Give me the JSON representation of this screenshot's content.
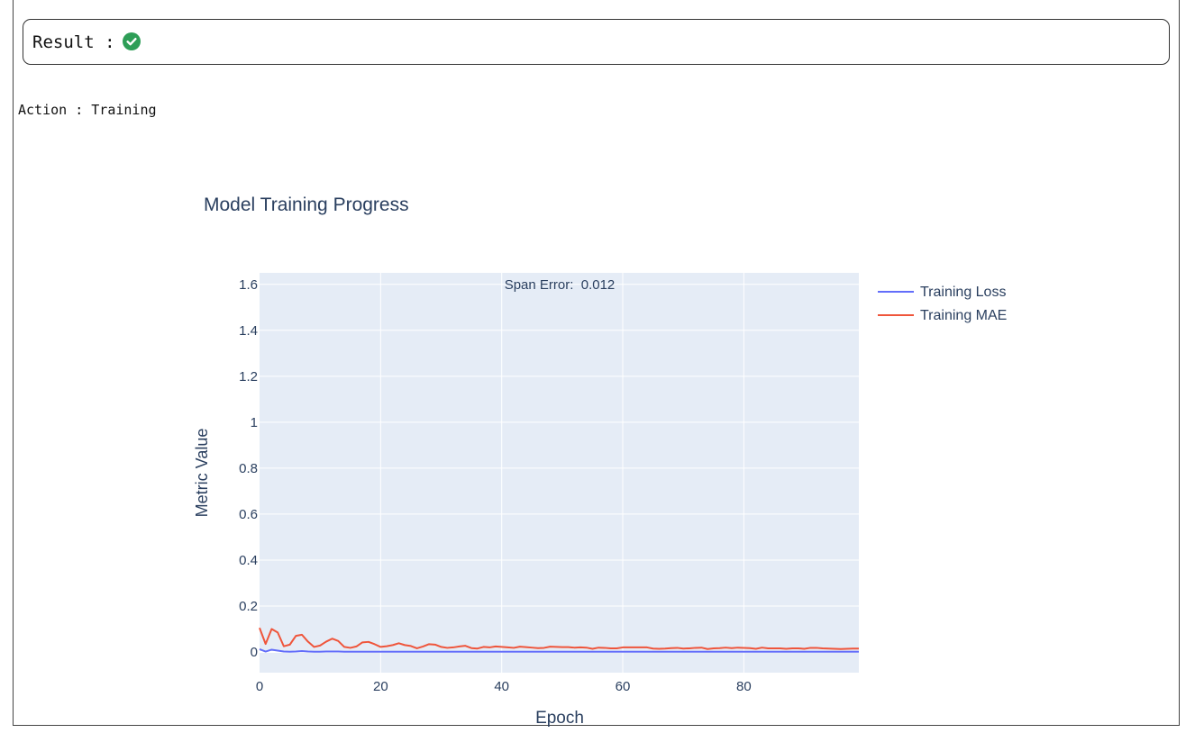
{
  "result": {
    "label": "Result :",
    "status_icon": "check-circle-icon",
    "status_color": "#2e9e57"
  },
  "action": {
    "label": "Action",
    "separator": ":",
    "value": "Training"
  },
  "chart_data": {
    "type": "line",
    "title": "Model Training Progress",
    "xlabel": "Epoch",
    "ylabel": "Metric Value",
    "xlim": [
      0,
      99
    ],
    "ylim": [
      -0.09,
      1.65
    ],
    "x_ticks": [
      0,
      20,
      40,
      60,
      80
    ],
    "y_ticks": [
      0,
      0.2,
      0.4,
      0.6,
      0.8,
      1,
      1.2,
      1.4,
      1.6
    ],
    "y_tick_labels": [
      "0",
      "0.2",
      "0.4",
      "0.6",
      "0.8",
      "1",
      "1.2",
      "1.4",
      "1.6"
    ],
    "grid": true,
    "legend_position": "top-right-outside",
    "annotation": "Span Error:  0.012",
    "colors": {
      "plot_background": "#e5ecf6",
      "text": "#2a3f5f"
    },
    "series": [
      {
        "name": "Training Loss",
        "color": "#636efa",
        "x": [
          0,
          1,
          2,
          3,
          4,
          5,
          6,
          7,
          8,
          9,
          10,
          11,
          12,
          13,
          14,
          15,
          16,
          17,
          18,
          19,
          20,
          21,
          22,
          23,
          24,
          25,
          26,
          27,
          28,
          29,
          30,
          31,
          32,
          33,
          34,
          35,
          36,
          37,
          38,
          39,
          40,
          41,
          42,
          43,
          44,
          45,
          46,
          47,
          48,
          49,
          50,
          51,
          52,
          53,
          54,
          55,
          56,
          57,
          58,
          59,
          60,
          61,
          62,
          63,
          64,
          65,
          66,
          67,
          68,
          69,
          70,
          71,
          72,
          73,
          74,
          75,
          76,
          77,
          78,
          79,
          80,
          81,
          82,
          83,
          84,
          85,
          86,
          87,
          88,
          89,
          90,
          91,
          92,
          93,
          94,
          95,
          96,
          97,
          98,
          99
        ],
        "values": [
          0.012,
          0.002,
          0.01,
          0.006,
          0.002,
          0.001,
          0.002,
          0.004,
          0.002,
          0.001,
          0.001,
          0.002,
          0.002,
          0.002,
          0.001,
          0.001,
          0.001,
          0.001,
          0.001,
          0.001,
          0.001,
          0.001,
          0.001,
          0.001,
          0.001,
          0.001,
          0.001,
          0.001,
          0.001,
          0.001,
          0.001,
          0.001,
          0.001,
          0.001,
          0.001,
          0.001,
          0.001,
          0.001,
          0.001,
          0.001,
          0.001,
          0.001,
          0.001,
          0.001,
          0.001,
          0.001,
          0.001,
          0.001,
          0.001,
          0.001,
          0.001,
          0.001,
          0.001,
          0.001,
          0.001,
          0.001,
          0.001,
          0.001,
          0.001,
          0.001,
          0.001,
          0.001,
          0.001,
          0.001,
          0.001,
          0.001,
          0.001,
          0.001,
          0.001,
          0.001,
          0.001,
          0.001,
          0.001,
          0.001,
          0.001,
          0.001,
          0.001,
          0.001,
          0.001,
          0.001,
          0.001,
          0.001,
          0.001,
          0.001,
          0.001,
          0.001,
          0.001,
          0.001,
          0.001,
          0.001,
          0.001,
          0.001,
          0.001,
          0.001,
          0.001,
          0.001,
          0.001,
          0.001,
          0.001,
          0.001
        ]
      },
      {
        "name": "Training MAE",
        "color": "#ef553b",
        "x": [
          0,
          1,
          2,
          3,
          4,
          5,
          6,
          7,
          8,
          9,
          10,
          11,
          12,
          13,
          14,
          15,
          16,
          17,
          18,
          19,
          20,
          21,
          22,
          23,
          24,
          25,
          26,
          27,
          28,
          29,
          30,
          31,
          32,
          33,
          34,
          35,
          36,
          37,
          38,
          39,
          40,
          41,
          42,
          43,
          44,
          45,
          46,
          47,
          48,
          49,
          50,
          51,
          52,
          53,
          54,
          55,
          56,
          57,
          58,
          59,
          60,
          61,
          62,
          63,
          64,
          65,
          66,
          67,
          68,
          69,
          70,
          71,
          72,
          73,
          74,
          75,
          76,
          77,
          78,
          79,
          80,
          81,
          82,
          83,
          84,
          85,
          86,
          87,
          88,
          89,
          90,
          91,
          92,
          93,
          94,
          95,
          96,
          97,
          98,
          99
        ],
        "values": [
          0.105,
          0.035,
          0.1,
          0.085,
          0.025,
          0.032,
          0.07,
          0.075,
          0.045,
          0.022,
          0.028,
          0.045,
          0.058,
          0.048,
          0.022,
          0.018,
          0.024,
          0.042,
          0.044,
          0.034,
          0.022,
          0.025,
          0.03,
          0.038,
          0.03,
          0.026,
          0.016,
          0.024,
          0.034,
          0.032,
          0.022,
          0.018,
          0.02,
          0.024,
          0.027,
          0.017,
          0.015,
          0.022,
          0.02,
          0.024,
          0.022,
          0.02,
          0.018,
          0.023,
          0.021,
          0.019,
          0.017,
          0.018,
          0.023,
          0.022,
          0.021,
          0.021,
          0.019,
          0.02,
          0.019,
          0.014,
          0.019,
          0.018,
          0.016,
          0.016,
          0.02,
          0.02,
          0.02,
          0.02,
          0.02,
          0.015,
          0.014,
          0.015,
          0.017,
          0.018,
          0.015,
          0.016,
          0.018,
          0.019,
          0.013,
          0.016,
          0.017,
          0.019,
          0.017,
          0.019,
          0.018,
          0.017,
          0.014,
          0.019,
          0.016,
          0.016,
          0.016,
          0.014,
          0.016,
          0.016,
          0.014,
          0.018,
          0.018,
          0.016,
          0.015,
          0.014,
          0.013,
          0.014,
          0.015,
          0.015
        ]
      }
    ]
  }
}
